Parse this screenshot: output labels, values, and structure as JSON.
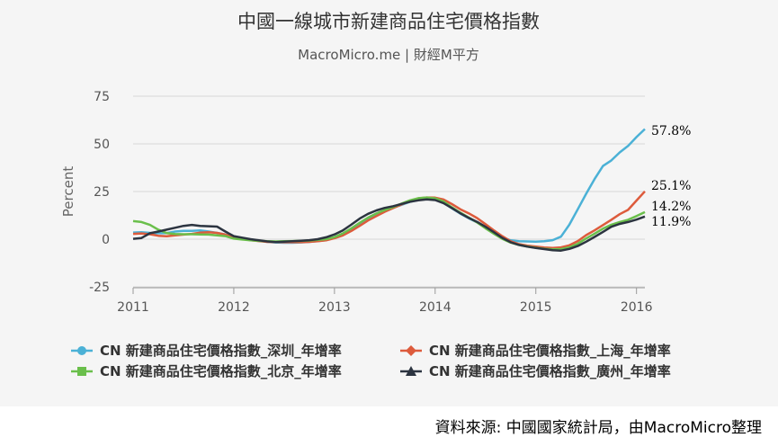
{
  "title": "中國一線城市新建商品住宅價格指數",
  "subtitle": "MacroMicro.me | 財經M平方",
  "source": "資料來源: 中國國家統計局，由MacroMicro整理",
  "chart_data": {
    "type": "line",
    "title": "中國一線城市新建商品住宅價格指數",
    "subtitle": "MacroMicro.me | 財經M平方",
    "ylabel": "Percent",
    "xlabel": "",
    "ylim": [
      -25,
      75
    ],
    "yticks": [
      "75",
      "50",
      "25",
      "0",
      "-25"
    ],
    "xticks": [
      "2011",
      "2012",
      "2013",
      "2014",
      "2015",
      "2016"
    ],
    "xlim": [
      "2011-01",
      "2016-02"
    ],
    "grid": "horizontal",
    "legend_position": "bottom",
    "series": [
      {
        "name": "CN 新建商品住宅價格指數_深圳_年增率",
        "color": "#4bb1d6",
        "marker": "circle",
        "end_label": "57.8%",
        "points": [
          [
            "2011-01",
            3.5
          ],
          [
            "2011-02",
            3.7
          ],
          [
            "2011-03",
            3.3
          ],
          [
            "2011-04",
            3.1
          ],
          [
            "2011-05",
            3.2
          ],
          [
            "2011-06",
            4.0
          ],
          [
            "2011-07",
            4.4
          ],
          [
            "2011-08",
            4.4
          ],
          [
            "2011-09",
            4.6
          ],
          [
            "2011-10",
            4.0
          ],
          [
            "2011-11",
            3.3
          ],
          [
            "2011-12",
            2.5
          ],
          [
            "2012-01",
            1.0
          ],
          [
            "2012-02",
            0.2
          ],
          [
            "2012-03",
            -0.3
          ],
          [
            "2012-04",
            -0.8
          ],
          [
            "2012-05",
            -1.4
          ],
          [
            "2012-06",
            -1.7
          ],
          [
            "2012-07",
            -1.9
          ],
          [
            "2012-08",
            -1.9
          ],
          [
            "2012-09",
            -1.7
          ],
          [
            "2012-10",
            -1.4
          ],
          [
            "2012-11",
            -1.0
          ],
          [
            "2012-12",
            -0.5
          ],
          [
            "2013-01",
            0.8
          ],
          [
            "2013-02",
            2.6
          ],
          [
            "2013-03",
            5.2
          ],
          [
            "2013-04",
            8.1
          ],
          [
            "2013-05",
            11.0
          ],
          [
            "2013-06",
            13.2
          ],
          [
            "2013-07",
            15.1
          ],
          [
            "2013-08",
            16.5
          ],
          [
            "2013-09",
            18.0
          ],
          [
            "2013-10",
            19.6
          ],
          [
            "2013-11",
            20.6
          ],
          [
            "2013-12",
            21.2
          ],
          [
            "2014-01",
            20.8
          ],
          [
            "2014-02",
            19.2
          ],
          [
            "2014-03",
            16.2
          ],
          [
            "2014-04",
            13.4
          ],
          [
            "2014-05",
            11.0
          ],
          [
            "2014-06",
            8.8
          ],
          [
            "2014-07",
            6.0
          ],
          [
            "2014-08",
            3.3
          ],
          [
            "2014-09",
            0.9
          ],
          [
            "2014-10",
            -0.6
          ],
          [
            "2014-11",
            -1.1
          ],
          [
            "2014-12",
            -1.2
          ],
          [
            "2015-01",
            -1.3
          ],
          [
            "2015-02",
            -1.1
          ],
          [
            "2015-03",
            -0.5
          ],
          [
            "2015-04",
            1.3
          ],
          [
            "2015-05",
            7.6
          ],
          [
            "2015-06",
            15.7
          ],
          [
            "2015-07",
            23.8
          ],
          [
            "2015-08",
            31.5
          ],
          [
            "2015-09",
            38.4
          ],
          [
            "2015-10",
            41.3
          ],
          [
            "2015-11",
            45.5
          ],
          [
            "2015-12",
            48.9
          ],
          [
            "2016-01",
            53.6
          ],
          [
            "2016-02",
            57.8
          ]
        ]
      },
      {
        "name": "CN 新建商品住宅價格指數_上海_年增率",
        "color": "#dd5b3c",
        "marker": "diamond",
        "end_label": "25.1%",
        "points": [
          [
            "2011-01",
            2.8
          ],
          [
            "2011-02",
            3.0
          ],
          [
            "2011-03",
            2.6
          ],
          [
            "2011-04",
            1.8
          ],
          [
            "2011-05",
            1.5
          ],
          [
            "2011-06",
            2.0
          ],
          [
            "2011-07",
            2.4
          ],
          [
            "2011-08",
            2.8
          ],
          [
            "2011-09",
            3.4
          ],
          [
            "2011-10",
            3.7
          ],
          [
            "2011-11",
            3.3
          ],
          [
            "2011-12",
            2.4
          ],
          [
            "2012-01",
            0.8
          ],
          [
            "2012-02",
            0.1
          ],
          [
            "2012-03",
            -0.5
          ],
          [
            "2012-04",
            -1.0
          ],
          [
            "2012-05",
            -1.4
          ],
          [
            "2012-06",
            -1.5
          ],
          [
            "2012-07",
            -1.6
          ],
          [
            "2012-08",
            -1.6
          ],
          [
            "2012-09",
            -1.6
          ],
          [
            "2012-10",
            -1.4
          ],
          [
            "2012-11",
            -1.1
          ],
          [
            "2012-12",
            -0.6
          ],
          [
            "2013-01",
            0.5
          ],
          [
            "2013-02",
            2.0
          ],
          [
            "2013-03",
            4.3
          ],
          [
            "2013-04",
            7.0
          ],
          [
            "2013-05",
            9.8
          ],
          [
            "2013-06",
            12.1
          ],
          [
            "2013-07",
            14.4
          ],
          [
            "2013-08",
            16.3
          ],
          [
            "2013-09",
            18.2
          ],
          [
            "2013-10",
            20.0
          ],
          [
            "2013-11",
            21.4
          ],
          [
            "2013-12",
            21.9
          ],
          [
            "2014-01",
            21.8
          ],
          [
            "2014-02",
            20.8
          ],
          [
            "2014-03",
            18.4
          ],
          [
            "2014-04",
            15.7
          ],
          [
            "2014-05",
            13.6
          ],
          [
            "2014-06",
            11.1
          ],
          [
            "2014-07",
            7.9
          ],
          [
            "2014-08",
            4.6
          ],
          [
            "2014-09",
            1.6
          ],
          [
            "2014-10",
            -1.1
          ],
          [
            "2014-11",
            -2.6
          ],
          [
            "2014-12",
            -3.4
          ],
          [
            "2015-01",
            -3.9
          ],
          [
            "2015-02",
            -4.4
          ],
          [
            "2015-03",
            -4.6
          ],
          [
            "2015-04",
            -4.3
          ],
          [
            "2015-05",
            -3.2
          ],
          [
            "2015-06",
            -1.0
          ],
          [
            "2015-07",
            2.1
          ],
          [
            "2015-08",
            4.6
          ],
          [
            "2015-09",
            7.4
          ],
          [
            "2015-10",
            10.2
          ],
          [
            "2015-11",
            13.1
          ],
          [
            "2015-12",
            15.4
          ],
          [
            "2016-01",
            20.3
          ],
          [
            "2016-02",
            25.1
          ]
        ]
      },
      {
        "name": "CN 新建商品住宅價格指數_北京_年增率",
        "color": "#6abf4b",
        "marker": "square",
        "end_label": "14.2%",
        "points": [
          [
            "2011-01",
            9.5
          ],
          [
            "2011-02",
            9.0
          ],
          [
            "2011-03",
            7.5
          ],
          [
            "2011-04",
            5.0
          ],
          [
            "2011-05",
            3.2
          ],
          [
            "2011-06",
            2.7
          ],
          [
            "2011-07",
            2.6
          ],
          [
            "2011-08",
            2.6
          ],
          [
            "2011-09",
            2.5
          ],
          [
            "2011-10",
            2.4
          ],
          [
            "2011-11",
            2.0
          ],
          [
            "2011-12",
            1.6
          ],
          [
            "2012-01",
            0.3
          ],
          [
            "2012-02",
            -0.2
          ],
          [
            "2012-03",
            -0.6
          ],
          [
            "2012-04",
            -0.9
          ],
          [
            "2012-05",
            -1.1
          ],
          [
            "2012-06",
            -1.2
          ],
          [
            "2012-07",
            -1.1
          ],
          [
            "2012-08",
            -1.0
          ],
          [
            "2012-09",
            -0.9
          ],
          [
            "2012-10",
            -0.7
          ],
          [
            "2012-11",
            -0.4
          ],
          [
            "2012-12",
            0.0
          ],
          [
            "2013-01",
            1.1
          ],
          [
            "2013-02",
            3.0
          ],
          [
            "2013-03",
            5.6
          ],
          [
            "2013-04",
            8.6
          ],
          [
            "2013-05",
            11.3
          ],
          [
            "2013-06",
            13.5
          ],
          [
            "2013-07",
            15.3
          ],
          [
            "2013-08",
            16.9
          ],
          [
            "2013-09",
            18.7
          ],
          [
            "2013-10",
            20.4
          ],
          [
            "2013-11",
            21.5
          ],
          [
            "2013-12",
            21.9
          ],
          [
            "2014-01",
            21.4
          ],
          [
            "2014-02",
            19.8
          ],
          [
            "2014-03",
            16.7
          ],
          [
            "2014-04",
            13.9
          ],
          [
            "2014-05",
            11.4
          ],
          [
            "2014-06",
            8.8
          ],
          [
            "2014-07",
            5.7
          ],
          [
            "2014-08",
            2.9
          ],
          [
            "2014-09",
            0.2
          ],
          [
            "2014-10",
            -1.8
          ],
          [
            "2014-11",
            -3.0
          ],
          [
            "2014-12",
            -3.8
          ],
          [
            "2015-01",
            -4.5
          ],
          [
            "2015-02",
            -5.0
          ],
          [
            "2015-03",
            -5.3
          ],
          [
            "2015-04",
            -5.2
          ],
          [
            "2015-05",
            -4.3
          ],
          [
            "2015-06",
            -2.4
          ],
          [
            "2015-07",
            0.4
          ],
          [
            "2015-08",
            2.9
          ],
          [
            "2015-09",
            5.5
          ],
          [
            "2015-10",
            7.6
          ],
          [
            "2015-11",
            9.0
          ],
          [
            "2015-12",
            10.2
          ],
          [
            "2016-01",
            12.1
          ],
          [
            "2016-02",
            14.2
          ]
        ]
      },
      {
        "name": "CN 新建商品住宅價格指數_廣州_年增率",
        "color": "#2c3440",
        "marker": "triangle",
        "end_label": "11.9%",
        "points": [
          [
            "2011-01",
            0.2
          ],
          [
            "2011-02",
            0.6
          ],
          [
            "2011-03",
            3.1
          ],
          [
            "2011-04",
            4.0
          ],
          [
            "2011-05",
            5.0
          ],
          [
            "2011-06",
            6.0
          ],
          [
            "2011-07",
            7.0
          ],
          [
            "2011-08",
            7.5
          ],
          [
            "2011-09",
            7.0
          ],
          [
            "2011-10",
            6.8
          ],
          [
            "2011-11",
            6.6
          ],
          [
            "2011-12",
            4.0
          ],
          [
            "2012-01",
            1.6
          ],
          [
            "2012-02",
            0.8
          ],
          [
            "2012-03",
            0.0
          ],
          [
            "2012-04",
            -0.6
          ],
          [
            "2012-05",
            -1.2
          ],
          [
            "2012-06",
            -1.5
          ],
          [
            "2012-07",
            -1.3
          ],
          [
            "2012-08",
            -1.1
          ],
          [
            "2012-09",
            -0.8
          ],
          [
            "2012-10",
            -0.5
          ],
          [
            "2012-11",
            0.0
          ],
          [
            "2012-12",
            1.0
          ],
          [
            "2013-01",
            2.5
          ],
          [
            "2013-02",
            4.6
          ],
          [
            "2013-03",
            7.6
          ],
          [
            "2013-04",
            10.8
          ],
          [
            "2013-05",
            13.3
          ],
          [
            "2013-06",
            15.1
          ],
          [
            "2013-07",
            16.4
          ],
          [
            "2013-08",
            17.3
          ],
          [
            "2013-09",
            18.5
          ],
          [
            "2013-10",
            19.6
          ],
          [
            "2013-11",
            20.4
          ],
          [
            "2013-12",
            20.9
          ],
          [
            "2014-01",
            20.5
          ],
          [
            "2014-02",
            18.9
          ],
          [
            "2014-03",
            16.3
          ],
          [
            "2014-04",
            13.6
          ],
          [
            "2014-05",
            11.2
          ],
          [
            "2014-06",
            9.1
          ],
          [
            "2014-07",
            6.5
          ],
          [
            "2014-08",
            3.7
          ],
          [
            "2014-09",
            0.7
          ],
          [
            "2014-10",
            -1.6
          ],
          [
            "2014-11",
            -3.0
          ],
          [
            "2014-12",
            -3.9
          ],
          [
            "2015-01",
            -4.6
          ],
          [
            "2015-02",
            -5.2
          ],
          [
            "2015-03",
            -5.8
          ],
          [
            "2015-04",
            -6.0
          ],
          [
            "2015-05",
            -5.1
          ],
          [
            "2015-06",
            -3.6
          ],
          [
            "2015-07",
            -1.3
          ],
          [
            "2015-08",
            1.2
          ],
          [
            "2015-09",
            3.8
          ],
          [
            "2015-10",
            6.5
          ],
          [
            "2015-11",
            8.0
          ],
          [
            "2015-12",
            9.0
          ],
          [
            "2016-01",
            10.3
          ],
          [
            "2016-02",
            11.9
          ]
        ]
      }
    ]
  }
}
